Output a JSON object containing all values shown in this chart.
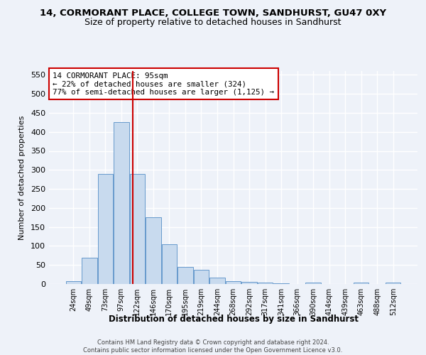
{
  "title1": "14, CORMORANT PLACE, COLLEGE TOWN, SANDHURST, GU47 0XY",
  "title2": "Size of property relative to detached houses in Sandhurst",
  "xlabel": "Distribution of detached houses by size in Sandhurst",
  "ylabel": "Number of detached properties",
  "bins": [
    "24sqm",
    "49sqm",
    "73sqm",
    "97sqm",
    "122sqm",
    "146sqm",
    "170sqm",
    "195sqm",
    "219sqm",
    "244sqm",
    "268sqm",
    "292sqm",
    "317sqm",
    "341sqm",
    "366sqm",
    "390sqm",
    "414sqm",
    "439sqm",
    "463sqm",
    "488sqm",
    "512sqm"
  ],
  "values": [
    8,
    70,
    290,
    425,
    290,
    175,
    105,
    44,
    37,
    16,
    8,
    5,
    3,
    1,
    0,
    4,
    0,
    0,
    3,
    0,
    3
  ],
  "bar_color": "#c8daee",
  "bar_edge_color": "#6699cc",
  "vline_x": 3.72,
  "vline_color": "#cc0000",
  "annotation_text": "14 CORMORANT PLACE: 95sqm\n← 22% of detached houses are smaller (324)\n77% of semi-detached houses are larger (1,125) →",
  "annotation_box_color": "#ffffff",
  "annotation_box_edge": "#cc0000",
  "ylim": [
    0,
    560
  ],
  "yticks": [
    0,
    50,
    100,
    150,
    200,
    250,
    300,
    350,
    400,
    450,
    500,
    550
  ],
  "footer": "Contains HM Land Registry data © Crown copyright and database right 2024.\nContains public sector information licensed under the Open Government Licence v3.0.",
  "bg_color": "#eef2f9",
  "grid_color": "#ffffff",
  "title1_fontsize": 9.5,
  "title2_fontsize": 9
}
